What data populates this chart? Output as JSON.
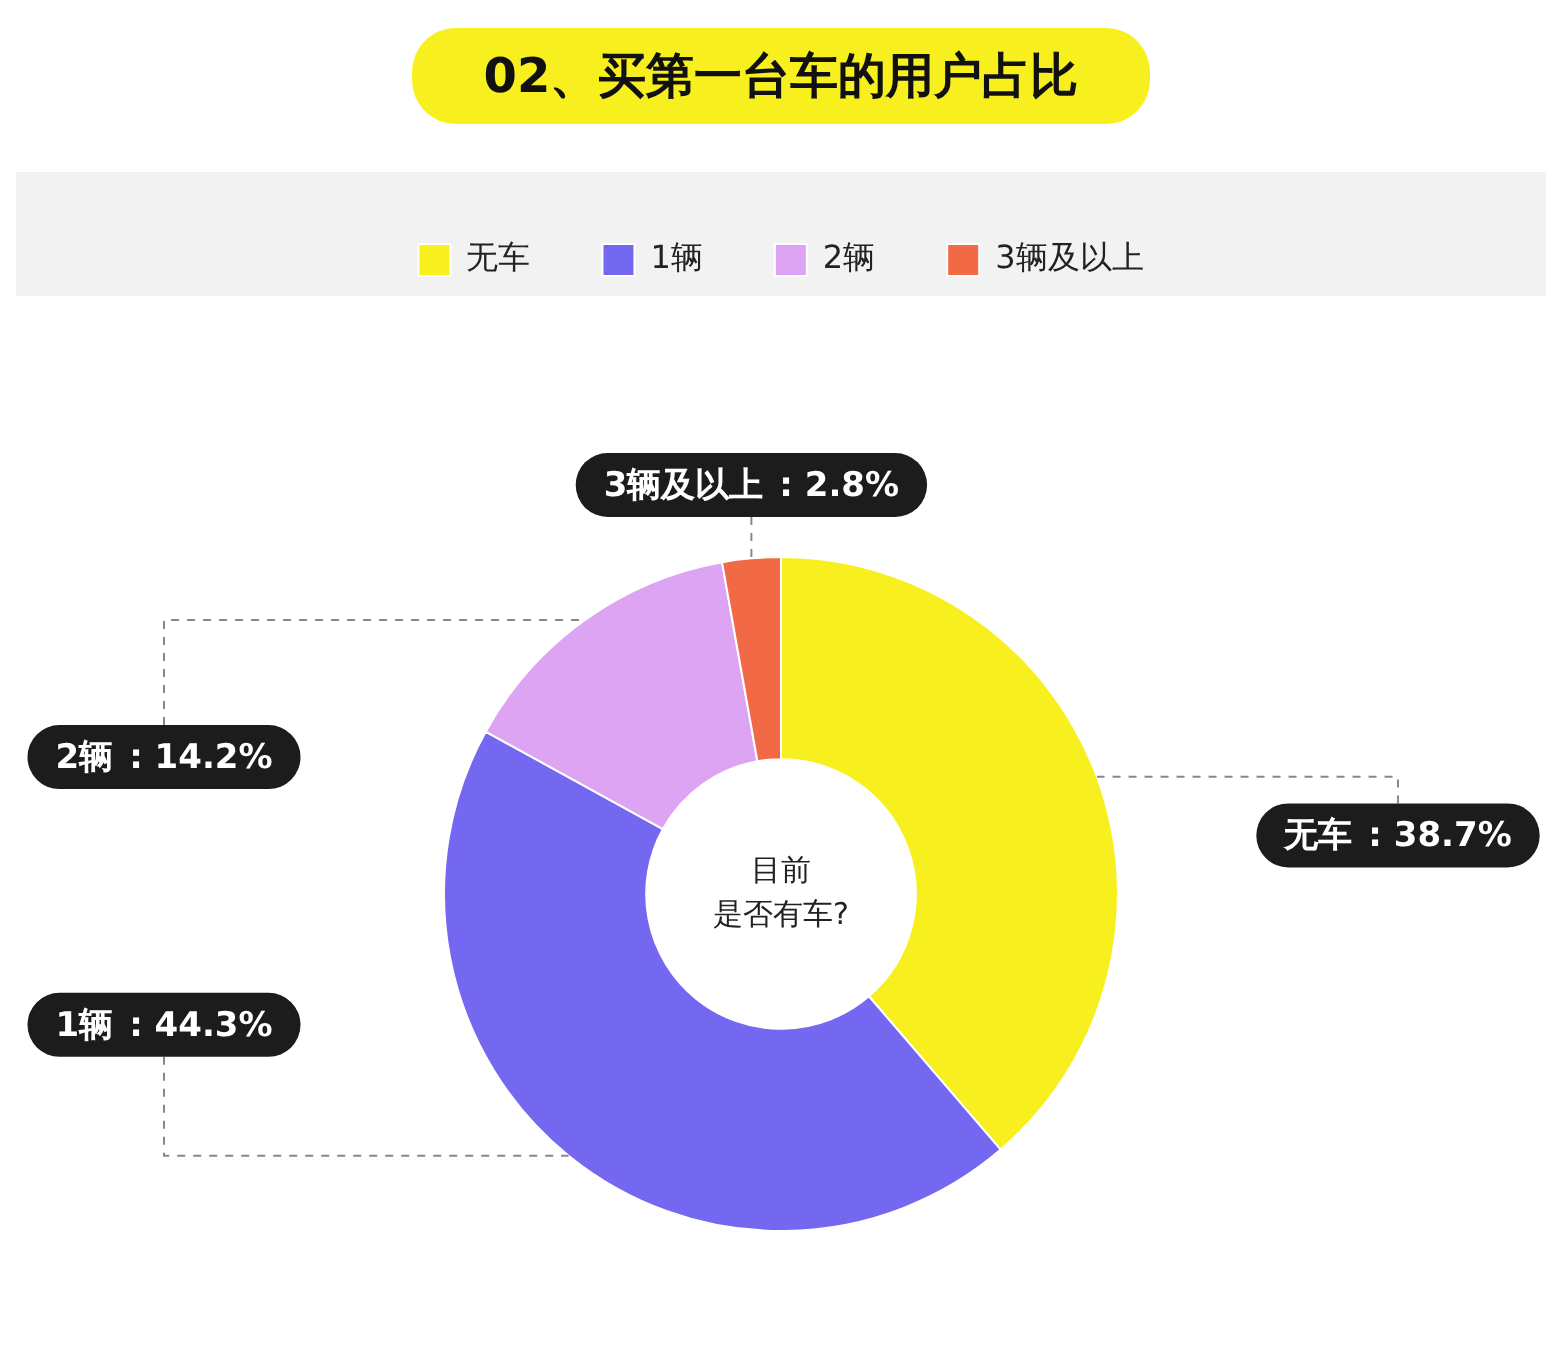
{
  "chart_data": {
    "type": "donut",
    "title": "02、买第一台车的用户占比",
    "categories": [
      "无车",
      "1辆",
      "2辆",
      "3辆及以上"
    ],
    "values": [
      38.7,
      44.3,
      14.2,
      2.8
    ],
    "colors": [
      "#f8f01e",
      "#7467f0",
      "#dda4f4",
      "#f26a45"
    ],
    "value_labels": [
      ": 38.7%",
      ": 44.3%",
      ": 14.2%",
      ": 2.8%"
    ],
    "legend": "top",
    "annotations": [
      "目前",
      "是否有车?"
    ]
  }
}
